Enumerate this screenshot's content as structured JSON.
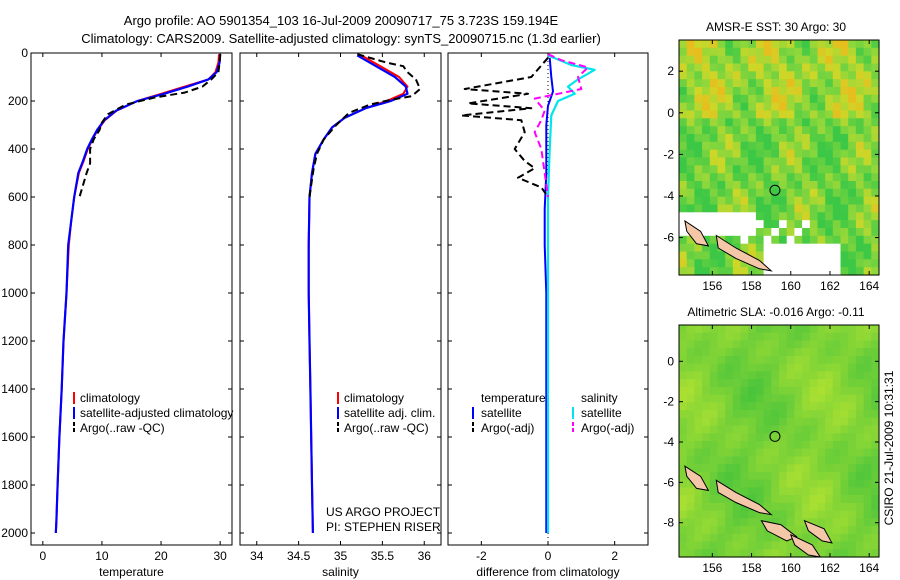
{
  "header": {
    "line1": "Argo profile: AO 5901354_103 16-Jul-2009 20090717_75 3.723S 159.194E",
    "line2": "Climatology: CARS2009. Satellite-adjusted climatology: synTS_20090715.nc (1.3d earlier)"
  },
  "side_label": "CSIRO 21-Jul-2009 10:31:31",
  "colors": {
    "climatology": "#ff0000",
    "satellite": "#0000ff",
    "argo": "#000000",
    "sat_salinity": "#00e5ee",
    "argo_salinity": "#ff00ff"
  },
  "chart_data": [
    {
      "type": "line",
      "xlabel": "temperature",
      "xlim": [
        -2,
        32
      ],
      "ylim": [
        0,
        2050
      ],
      "xticks": [
        "0",
        "10",
        "20",
        "30"
      ],
      "xtick_values": [
        0,
        10,
        20,
        30
      ],
      "yticks": [
        "0",
        "200",
        "400",
        "600",
        "800",
        "1000",
        "1200",
        "1400",
        "1600",
        "1800",
        "2000"
      ],
      "legend": [
        "climatology",
        "satellite-adjusted climatology",
        "Argo(..raw -QC)"
      ],
      "series": [
        {
          "name": "climatology",
          "values": [
            [
              29.8,
              5
            ],
            [
              29.7,
              40
            ],
            [
              29.2,
              80
            ],
            [
              28,
              110
            ],
            [
              24,
              140
            ],
            [
              20,
              170
            ],
            [
              16,
              200
            ],
            [
              12.5,
              240
            ],
            [
              10.5,
              280
            ],
            [
              9.3,
              320
            ],
            [
              8.4,
              360
            ],
            [
              7.6,
              400
            ],
            [
              6.9,
              450
            ],
            [
              6.1,
              500
            ],
            [
              5.3,
              600
            ],
            [
              4.8,
              700
            ],
            [
              4.4,
              800
            ],
            [
              4,
              1000
            ],
            [
              3.5,
              1200
            ],
            [
              3.2,
              1400
            ],
            [
              2.8,
              1600
            ],
            [
              2.5,
              1800
            ],
            [
              2.3,
              1950
            ],
            [
              2.2,
              2000
            ]
          ]
        },
        {
          "name": "satellite-adjusted climatology",
          "values": [
            [
              30,
              5
            ],
            [
              29.9,
              40
            ],
            [
              29.4,
              80
            ],
            [
              28,
              110
            ],
            [
              24.5,
              140
            ],
            [
              20.5,
              170
            ],
            [
              16,
              200
            ],
            [
              12.4,
              240
            ],
            [
              10.4,
              280
            ],
            [
              9.2,
              320
            ],
            [
              8.3,
              360
            ],
            [
              7.5,
              400
            ],
            [
              6.8,
              450
            ],
            [
              6,
              500
            ],
            [
              5.3,
              600
            ],
            [
              4.8,
              700
            ],
            [
              4.3,
              800
            ],
            [
              4,
              1000
            ],
            [
              3.5,
              1200
            ],
            [
              3.2,
              1400
            ],
            [
              2.8,
              1600
            ],
            [
              2.5,
              1800
            ],
            [
              2.3,
              1950
            ],
            [
              2.2,
              2000
            ]
          ]
        },
        {
          "name": "Argo(..raw -QC)",
          "values": [
            [
              30,
              5
            ],
            [
              29.9,
              40
            ],
            [
              29.7,
              80
            ],
            [
              28.5,
              110
            ],
            [
              27,
              140
            ],
            [
              24,
              165
            ],
            [
              19,
              185
            ],
            [
              14,
              215
            ],
            [
              11,
              255
            ],
            [
              10,
              290
            ],
            [
              9.6,
              320
            ],
            [
              8.6,
              360
            ],
            [
              8,
              400
            ],
            [
              8,
              460
            ],
            [
              7.4,
              500
            ],
            [
              6.2,
              600
            ]
          ]
        }
      ]
    },
    {
      "type": "line",
      "xlabel": "salinity",
      "xlim": [
        33.8,
        36.2
      ],
      "ylim": [
        0,
        2050
      ],
      "xticks": [
        "34",
        "34.5",
        "35",
        "35.5",
        "36"
      ],
      "xtick_values": [
        34,
        34.5,
        35,
        35.5,
        36
      ],
      "legend": [
        "climatology",
        "satellite adj. clim.",
        "Argo(..raw -QC)"
      ],
      "note": [
        "US ARGO PROJECT",
        "PI: STEPHEN RISER"
      ],
      "series": [
        {
          "name": "climatology",
          "values": [
            [
              35.25,
              10
            ],
            [
              35.35,
              30
            ],
            [
              35.5,
              60
            ],
            [
              35.7,
              100
            ],
            [
              35.8,
              140
            ],
            [
              35.75,
              170
            ],
            [
              35.55,
              200
            ],
            [
              35.3,
              230
            ],
            [
              35.05,
              270
            ],
            [
              34.9,
              310
            ],
            [
              34.8,
              360
            ],
            [
              34.7,
              420
            ],
            [
              34.66,
              500
            ],
            [
              34.63,
              600
            ],
            [
              34.62,
              800
            ],
            [
              34.62,
              1000
            ],
            [
              34.63,
              1200
            ],
            [
              34.64,
              1400
            ],
            [
              34.65,
              1600
            ],
            [
              34.66,
              1800
            ],
            [
              34.67,
              2000
            ]
          ]
        },
        {
          "name": "satellite adj. clim.",
          "values": [
            [
              35.2,
              10
            ],
            [
              35.3,
              30
            ],
            [
              35.45,
              60
            ],
            [
              35.65,
              100
            ],
            [
              35.78,
              140
            ],
            [
              35.8,
              170
            ],
            [
              35.6,
              200
            ],
            [
              35.3,
              230
            ],
            [
              35.05,
              270
            ],
            [
              34.9,
              310
            ],
            [
              34.8,
              360
            ],
            [
              34.7,
              420
            ],
            [
              34.66,
              500
            ],
            [
              34.63,
              600
            ],
            [
              34.62,
              800
            ],
            [
              34.62,
              1000
            ],
            [
              34.63,
              1200
            ],
            [
              34.64,
              1400
            ],
            [
              34.65,
              1600
            ],
            [
              34.66,
              1800
            ],
            [
              34.67,
              2000
            ]
          ]
        },
        {
          "name": "Argo(..raw -QC)",
          "values": [
            [
              35.2,
              5
            ],
            [
              35.4,
              25
            ],
            [
              35.55,
              40
            ],
            [
              35.75,
              55
            ],
            [
              35.8,
              80
            ],
            [
              35.9,
              110
            ],
            [
              35.95,
              150
            ],
            [
              35.85,
              180
            ],
            [
              35.6,
              195
            ],
            [
              35.35,
              215
            ],
            [
              35.1,
              250
            ],
            [
              34.95,
              300
            ],
            [
              34.8,
              360
            ],
            [
              34.72,
              420
            ],
            [
              34.68,
              480
            ],
            [
              34.65,
              550
            ],
            [
              34.63,
              600
            ]
          ]
        }
      ]
    },
    {
      "type": "line",
      "xlabel": "difference from climatology",
      "xlim": [
        -3,
        3
      ],
      "ylim": [
        0,
        2050
      ],
      "xticks": [
        "-2",
        "0",
        "2"
      ],
      "xtick_values": [
        -2,
        0,
        2
      ],
      "legend_titles": [
        "temperature",
        "salinity"
      ],
      "legend": [
        "satellite",
        "Argo(-adj)",
        "satellite",
        "Argo(-adj)"
      ],
      "series": [
        {
          "name": "temperature satellite",
          "values": [
            [
              0.05,
              20
            ],
            [
              0.1,
              100
            ],
            [
              0.15,
              160
            ],
            [
              0,
              220
            ],
            [
              -0.05,
              300
            ],
            [
              -0.05,
              500
            ],
            [
              -0.1,
              650
            ],
            [
              -0.1,
              800
            ],
            [
              -0.05,
              1000
            ],
            [
              -0.05,
              1500
            ],
            [
              -0.05,
              2000
            ]
          ]
        },
        {
          "name": "temperature Argo(-adj)",
          "values": [
            [
              0,
              20
            ],
            [
              -0.5,
              100
            ],
            [
              -2.5,
              150
            ],
            [
              -0.6,
              170
            ],
            [
              -2.4,
              210
            ],
            [
              -0.5,
              230
            ],
            [
              -2.6,
              260
            ],
            [
              -0.8,
              280
            ],
            [
              -0.7,
              330
            ],
            [
              -1,
              400
            ],
            [
              -0.7,
              450
            ],
            [
              -0.4,
              480
            ],
            [
              -0.9,
              520
            ],
            [
              -0.2,
              560
            ],
            [
              0,
              600
            ]
          ]
        },
        {
          "name": "salinity satellite",
          "values": [
            [
              0,
              10
            ],
            [
              0.7,
              50
            ],
            [
              1.4,
              70
            ],
            [
              0.9,
              110
            ],
            [
              0.6,
              140
            ],
            [
              0.8,
              170
            ],
            [
              0.3,
              200
            ],
            [
              0.1,
              260
            ],
            [
              0.05,
              400
            ],
            [
              0,
              600
            ],
            [
              0,
              1000
            ],
            [
              0,
              2000
            ]
          ]
        },
        {
          "name": "salinity Argo(-adj)",
          "values": [
            [
              0,
              5
            ],
            [
              0.4,
              30
            ],
            [
              1.2,
              60
            ],
            [
              0.9,
              100
            ],
            [
              1,
              150
            ],
            [
              -0.4,
              190
            ],
            [
              -0.1,
              240
            ],
            [
              -0.2,
              280
            ],
            [
              -0.4,
              330
            ],
            [
              -0.2,
              400
            ],
            [
              -0.1,
              500
            ],
            [
              0,
              600
            ]
          ]
        }
      ]
    },
    {
      "type": "heatmap",
      "title": "AMSR-E SST: 30 Argo: 30",
      "xlim": [
        154.3,
        164.5
      ],
      "ylim": [
        -7.8,
        3.5
      ],
      "xticks": [
        "156",
        "158",
        "160",
        "162",
        "164"
      ],
      "xtick_values": [
        156,
        158,
        160,
        162,
        164
      ],
      "yticks": [
        "2",
        "0",
        "-2",
        "-4",
        "-6"
      ],
      "ytick_values": [
        2,
        0,
        -2,
        -4,
        -6
      ],
      "marker": {
        "lon": 159.194,
        "lat": -3.723
      }
    },
    {
      "type": "heatmap",
      "title": "Altimetric SLA: -0.016 Argo: -0.11",
      "xlim": [
        154.3,
        164.5
      ],
      "ylim": [
        -9.7,
        1.8
      ],
      "xticks": [
        "156",
        "158",
        "160",
        "162",
        "164"
      ],
      "xtick_values": [
        156,
        158,
        160,
        162,
        164
      ],
      "yticks": [
        "0",
        "-2",
        "-4",
        "-6",
        "-8"
      ],
      "ytick_values": [
        0,
        -2,
        -4,
        -6,
        -8
      ],
      "marker": {
        "lon": 159.194,
        "lat": -3.723
      }
    }
  ]
}
